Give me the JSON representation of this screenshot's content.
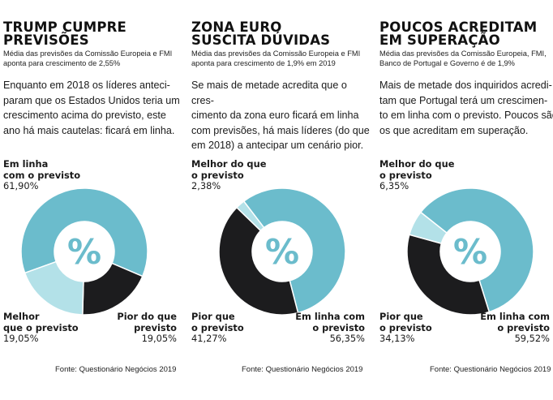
{
  "colors": {
    "main": "#6bbccc",
    "light": "#b3e1e8",
    "dark": "#1c1c1e",
    "white": "#ffffff"
  },
  "center_symbol": "%",
  "source": "Fonte: Questionário Negócios 2019",
  "panels": [
    {
      "title_line1": "TRUMP CUMPRE",
      "title_line2": "PREVISÕES",
      "subtitle_line1": "Média das previsões da Comissão Europeia e FMI",
      "subtitle_line2": "aponta para crescimento de 2,55%",
      "body_lines": [
        "Enquanto em 2018 os líderes anteci-",
        "param que os Estados Unidos teria um",
        "crescimento acima do previsto, este",
        "ano há mais cautelas: ficará em linha."
      ],
      "labels": [
        {
          "name": "Em linha\ncom o previsto",
          "value": "61,90%"
        },
        {
          "name": "Melhor\nque o previsto",
          "value": "19,05%"
        },
        {
          "name": "Pior do que\nprevisto",
          "value": "19,05%"
        }
      ]
    },
    {
      "title_line1": "ZONA EURO",
      "title_line2": "SUSCITA DÚVIDAS",
      "subtitle_line1": "Média das previsões da Comissão Europeia e FMI",
      "subtitle_line2": "aponta para crescimento de 1,9% em 2019",
      "body_lines": [
        "Se mais de metade acredita que o cres-",
        "cimento da zona euro ficará em linha",
        "com previsões, há mais líderes (do que",
        "em 2018) a antecipar um cenário pior."
      ],
      "labels": [
        {
          "name": "Melhor do que\no previsto",
          "value": "2,38%"
        },
        {
          "name": "Pior que\no previsto",
          "value": "41,27%"
        },
        {
          "name": "Em linha com\no previsto",
          "value": "56,35%"
        }
      ]
    },
    {
      "title_line1": "POUCOS ACREDITAM",
      "title_line2": "EM SUPERAÇÃO",
      "subtitle_line1": "Média das previsões da Comissão Europeia, FMI,",
      "subtitle_line2": "Banco de Portugal e Governo é de 1,9%",
      "body_lines": [
        "Mais de metade dos inquiridos acredi-",
        "tam que Portugal terá um crescimen-",
        "to em linha com o previsto. Poucos são",
        "os que acreditam em superação."
      ],
      "labels": [
        {
          "name": "Melhor do que\no previsto",
          "value": "6,35%"
        },
        {
          "name": "Pior que\no previsto",
          "value": "34,13%"
        },
        {
          "name": "Em linha com\no previsto",
          "value": "59,52%"
        }
      ]
    }
  ],
  "chart_data": [
    {
      "type": "pie",
      "title": "TRUMP CUMPRE PREVISÕES",
      "categories": [
        "Em linha com o previsto",
        "Pior do que previsto",
        "Melhor que o previsto"
      ],
      "values": [
        61.9,
        19.05,
        19.05
      ],
      "colors": [
        "#6bbccc",
        "#1c1c1e",
        "#b3e1e8"
      ]
    },
    {
      "type": "pie",
      "title": "ZONA EURO SUSCITA DÚVIDAS",
      "categories": [
        "Em linha com o previsto",
        "Pior que o previsto",
        "Melhor do que o previsto"
      ],
      "values": [
        56.35,
        41.27,
        2.38
      ],
      "colors": [
        "#6bbccc",
        "#1c1c1e",
        "#b3e1e8"
      ]
    },
    {
      "type": "pie",
      "title": "POUCOS ACREDITAM EM SUPERAÇÃO",
      "categories": [
        "Em linha com o previsto",
        "Pior que o previsto",
        "Melhor do que o previsto"
      ],
      "values": [
        59.52,
        34.13,
        6.35
      ],
      "colors": [
        "#6bbccc",
        "#1c1c1e",
        "#b3e1e8"
      ]
    }
  ]
}
